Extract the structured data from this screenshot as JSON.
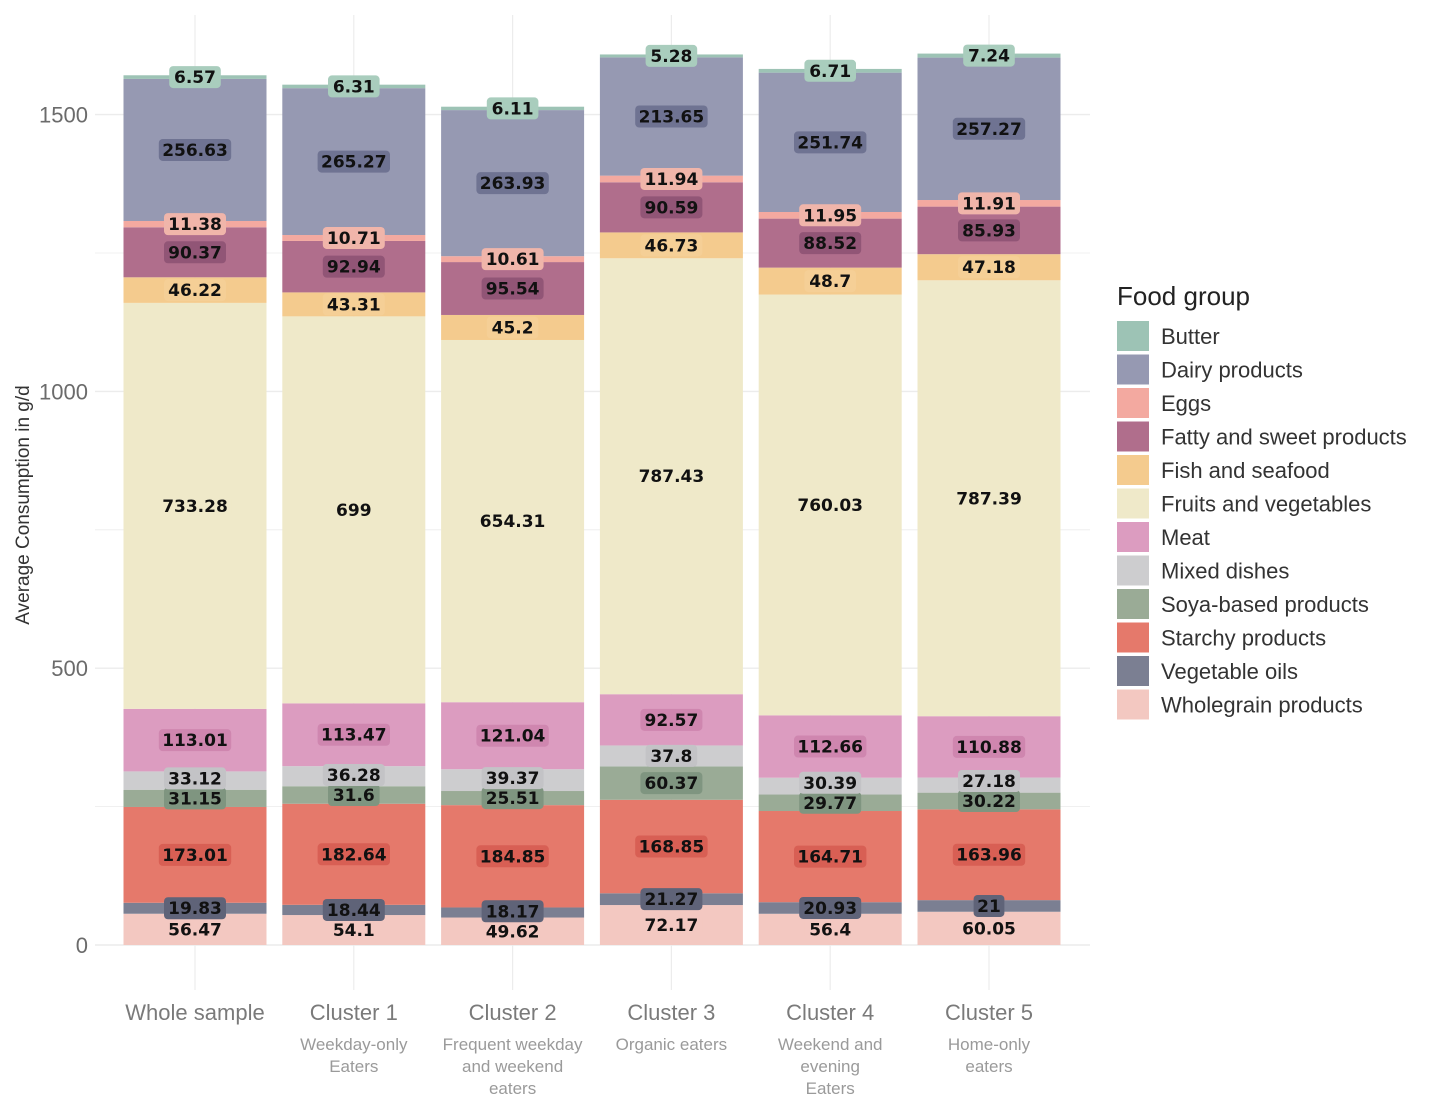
{
  "chart_data": {
    "type": "bar",
    "stacked": true,
    "ylabel": "Average Consumption in g/d",
    "xlabel": "",
    "ylim": [
      0,
      1700
    ],
    "yticks": [
      0,
      500,
      1000,
      1500
    ],
    "grid": true,
    "legend_position": "right",
    "legend_title": "Food group",
    "categories": [
      "Whole sample",
      "Cluster 1",
      "Cluster 2",
      "Cluster 3",
      "Cluster 4",
      "Cluster 5"
    ],
    "category_subtitles": [
      [],
      [
        "Weekday-only",
        "Eaters"
      ],
      [
        "Frequent weekday",
        "and weekend",
        "eaters"
      ],
      [
        "Organic eaters"
      ],
      [
        "Weekend and",
        "evening",
        "Eaters"
      ],
      [
        "Home-only",
        "eaters"
      ]
    ],
    "series": [
      {
        "name": "Butter",
        "color": "#9dc3b5",
        "label_color": "#a9cdbd",
        "values": [
          6.57,
          6.31,
          6.11,
          5.28,
          6.71,
          7.24
        ]
      },
      {
        "name": "Dairy products",
        "color": "#9699b2",
        "label_color": "#6f7392",
        "values": [
          256.63,
          265.27,
          263.93,
          213.65,
          251.74,
          257.27
        ]
      },
      {
        "name": "Eggs",
        "color": "#f3a9a0",
        "label_color": "#f0b5aa",
        "values": [
          11.38,
          10.71,
          10.61,
          11.94,
          11.95,
          11.91
        ]
      },
      {
        "name": "Fatty and sweet products",
        "color": "#b06e8c",
        "label_color": "#915576",
        "values": [
          90.37,
          92.94,
          95.54,
          90.59,
          88.52,
          85.93
        ]
      },
      {
        "name": "Fish and seafood",
        "color": "#f4cb8e",
        "label_color": "#f5cf96",
        "values": [
          46.22,
          43.31,
          45.2,
          46.73,
          48.7,
          47.18
        ]
      },
      {
        "name": "Fruits and vegetables",
        "color": "#efe9c9",
        "label_color": "#efe9c9",
        "values": [
          733.28,
          699,
          654.31,
          787.43,
          760.03,
          787.39
        ]
      },
      {
        "name": "Meat",
        "color": "#dc9cc0",
        "label_color": "#cf86af",
        "values": [
          113.01,
          113.47,
          121.04,
          92.57,
          112.66,
          110.88
        ]
      },
      {
        "name": "Mixed dishes",
        "color": "#cdcdcf",
        "label_color": "#c3c3c6",
        "values": [
          33.12,
          36.28,
          39.37,
          37.8,
          30.39,
          27.18
        ]
      },
      {
        "name": "Soya-based products",
        "color": "#9aab96",
        "label_color": "#7f9580",
        "values": [
          31.15,
          31.6,
          25.51,
          60.37,
          29.77,
          30.22
        ]
      },
      {
        "name": "Starchy products",
        "color": "#e5796b",
        "label_color": "#d85f54",
        "values": [
          173.01,
          182.64,
          184.85,
          168.85,
          164.71,
          163.96
        ]
      },
      {
        "name": "Vegetable oils",
        "color": "#7b7f92",
        "label_color": "#5f6378",
        "values": [
          19.83,
          18.44,
          18.17,
          21.27,
          20.93,
          21
        ]
      },
      {
        "name": "Wholegrain products",
        "color": "#f3c8c1",
        "label_color": "#f3c8c1",
        "values": [
          56.47,
          54.1,
          49.62,
          72.17,
          56.4,
          60.05
        ]
      }
    ]
  }
}
